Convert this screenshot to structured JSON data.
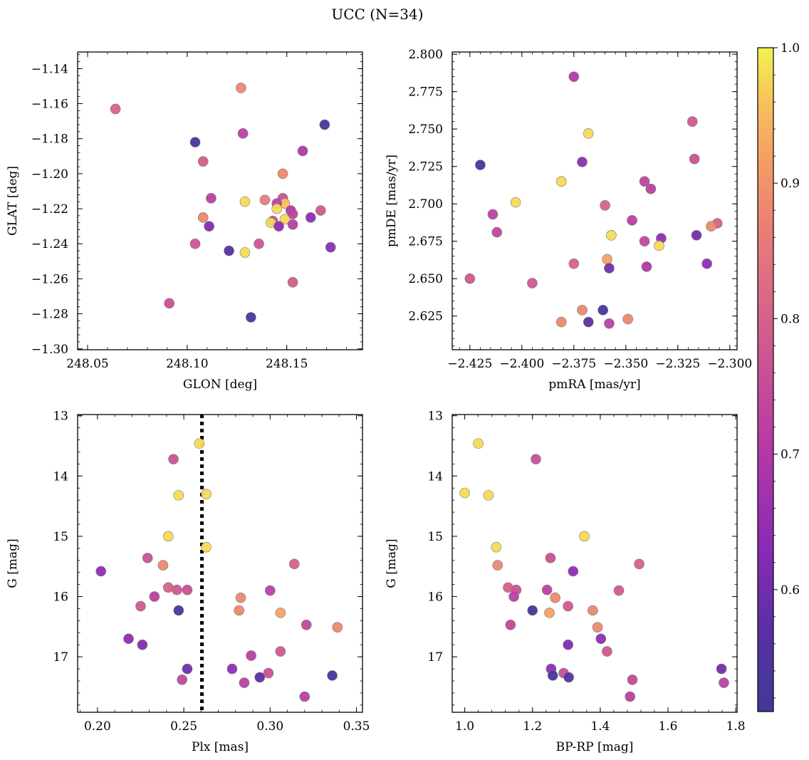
{
  "figure": {
    "title": "UCC (N=34)"
  },
  "colorbar": {
    "ticks": [
      0.6,
      0.7,
      0.8,
      0.9,
      1.0
    ],
    "tick_labels": [
      "0.6",
      "0.7",
      "0.8",
      "0.9",
      "1.0"
    ],
    "range": [
      0.51,
      1.0
    ],
    "colormap": "plasma"
  },
  "chart_data": [
    {
      "type": "scatter",
      "xlabel": "GLON [deg]",
      "ylabel": "GLAT [deg]",
      "xlim": [
        248.045,
        248.188
      ],
      "ylim": [
        -1.3005,
        -1.1305
      ],
      "xticks": [
        248.05,
        248.1,
        248.15
      ],
      "xtick_labels": [
        "248.05",
        "248.10",
        "248.15"
      ],
      "yticks": [
        -1.3,
        -1.28,
        -1.26,
        -1.24,
        -1.22,
        -1.2,
        -1.18,
        -1.16,
        -1.14
      ],
      "ytick_labels": [
        "−1.30",
        "−1.28",
        "−1.26",
        "−1.24",
        "−1.22",
        "−1.20",
        "−1.18",
        "−1.16",
        "−1.14"
      ],
      "points": [
        {
          "x": 248.064,
          "y": -1.163,
          "c": 0.8
        },
        {
          "x": 248.127,
          "y": -1.151,
          "c": 0.88
        },
        {
          "x": 248.169,
          "y": -1.172,
          "c": 0.53
        },
        {
          "x": 248.104,
          "y": -1.182,
          "c": 0.53
        },
        {
          "x": 248.128,
          "y": -1.177,
          "c": 0.72
        },
        {
          "x": 248.158,
          "y": -1.187,
          "c": 0.7
        },
        {
          "x": 248.108,
          "y": -1.193,
          "c": 0.79
        },
        {
          "x": 248.148,
          "y": -1.2,
          "c": 0.88
        },
        {
          "x": 248.112,
          "y": -1.214,
          "c": 0.72
        },
        {
          "x": 248.139,
          "y": -1.215,
          "c": 0.86
        },
        {
          "x": 248.148,
          "y": -1.214,
          "c": 0.76
        },
        {
          "x": 248.129,
          "y": -1.216,
          "c": 0.98
        },
        {
          "x": 248.149,
          "y": -1.217,
          "c": 0.96
        },
        {
          "x": 248.145,
          "y": -1.217,
          "c": 0.72
        },
        {
          "x": 248.152,
          "y": -1.221,
          "c": 0.7
        },
        {
          "x": 248.167,
          "y": -1.221,
          "c": 0.78
        },
        {
          "x": 248.153,
          "y": -1.223,
          "c": 0.73
        },
        {
          "x": 248.145,
          "y": -1.22,
          "c": 0.98
        },
        {
          "x": 248.108,
          "y": -1.225,
          "c": 0.88
        },
        {
          "x": 248.162,
          "y": -1.225,
          "c": 0.64
        },
        {
          "x": 248.149,
          "y": -1.226,
          "c": 0.98
        },
        {
          "x": 248.143,
          "y": -1.227,
          "c": 0.76
        },
        {
          "x": 248.142,
          "y": -1.228,
          "c": 0.98
        },
        {
          "x": 248.153,
          "y": -1.229,
          "c": 0.72
        },
        {
          "x": 248.146,
          "y": -1.23,
          "c": 0.64
        },
        {
          "x": 248.111,
          "y": -1.23,
          "c": 0.62
        },
        {
          "x": 248.104,
          "y": -1.24,
          "c": 0.77
        },
        {
          "x": 248.136,
          "y": -1.24,
          "c": 0.77
        },
        {
          "x": 248.172,
          "y": -1.242,
          "c": 0.64
        },
        {
          "x": 248.121,
          "y": -1.244,
          "c": 0.56
        },
        {
          "x": 248.129,
          "y": -1.245,
          "c": 0.98
        },
        {
          "x": 248.153,
          "y": -1.262,
          "c": 0.79
        },
        {
          "x": 248.091,
          "y": -1.274,
          "c": 0.76
        },
        {
          "x": 248.132,
          "y": -1.282,
          "c": 0.53
        }
      ]
    },
    {
      "type": "scatter",
      "xlabel": "pmRA [mas/yr]",
      "ylabel": "pmDE [mas/yr]",
      "xlim": [
        -2.4335,
        -2.2965
      ],
      "ylim": [
        2.6025,
        2.8015
      ],
      "xticks": [
        -2.425,
        -2.4,
        -2.375,
        -2.35,
        -2.325,
        -2.3
      ],
      "xtick_labels": [
        "−2.425",
        "−2.400",
        "−2.375",
        "−2.350",
        "−2.325",
        "−2.300"
      ],
      "yticks": [
        2.625,
        2.65,
        2.675,
        2.7,
        2.725,
        2.75,
        2.775,
        2.8
      ],
      "ytick_labels": [
        "2.625",
        "2.650",
        "2.675",
        "2.700",
        "2.725",
        "2.750",
        "2.775",
        "2.800"
      ],
      "points": [
        {
          "x": -2.375,
          "y": 2.785,
          "c": 0.7
        },
        {
          "x": -2.318,
          "y": 2.755,
          "c": 0.78
        },
        {
          "x": -2.368,
          "y": 2.747,
          "c": 0.98
        },
        {
          "x": -2.317,
          "y": 2.73,
          "c": 0.76
        },
        {
          "x": -2.371,
          "y": 2.728,
          "c": 0.64
        },
        {
          "x": -2.42,
          "y": 2.726,
          "c": 0.53
        },
        {
          "x": -2.381,
          "y": 2.715,
          "c": 0.98
        },
        {
          "x": -2.341,
          "y": 2.715,
          "c": 0.73
        },
        {
          "x": -2.338,
          "y": 2.71,
          "c": 0.72
        },
        {
          "x": -2.403,
          "y": 2.701,
          "c": 0.98
        },
        {
          "x": -2.36,
          "y": 2.699,
          "c": 0.8
        },
        {
          "x": -2.414,
          "y": 2.693,
          "c": 0.72
        },
        {
          "x": -2.347,
          "y": 2.689,
          "c": 0.72
        },
        {
          "x": -2.306,
          "y": 2.687,
          "c": 0.8
        },
        {
          "x": -2.309,
          "y": 2.685,
          "c": 0.88
        },
        {
          "x": -2.412,
          "y": 2.681,
          "c": 0.74
        },
        {
          "x": -2.357,
          "y": 2.679,
          "c": 0.98
        },
        {
          "x": -2.316,
          "y": 2.679,
          "c": 0.6
        },
        {
          "x": -2.333,
          "y": 2.677,
          "c": 0.64
        },
        {
          "x": -2.341,
          "y": 2.675,
          "c": 0.74
        },
        {
          "x": -2.334,
          "y": 2.672,
          "c": 0.98
        },
        {
          "x": -2.359,
          "y": 2.663,
          "c": 0.92
        },
        {
          "x": -2.375,
          "y": 2.66,
          "c": 0.8
        },
        {
          "x": -2.311,
          "y": 2.66,
          "c": 0.64
        },
        {
          "x": -2.34,
          "y": 2.658,
          "c": 0.7
        },
        {
          "x": -2.358,
          "y": 2.657,
          "c": 0.6
        },
        {
          "x": -2.425,
          "y": 2.65,
          "c": 0.78
        },
        {
          "x": -2.395,
          "y": 2.647,
          "c": 0.78
        },
        {
          "x": -2.371,
          "y": 2.629,
          "c": 0.88
        },
        {
          "x": -2.361,
          "y": 2.629,
          "c": 0.53
        },
        {
          "x": -2.349,
          "y": 2.623,
          "c": 0.88
        },
        {
          "x": -2.381,
          "y": 2.621,
          "c": 0.88
        },
        {
          "x": -2.368,
          "y": 2.621,
          "c": 0.56
        },
        {
          "x": -2.358,
          "y": 2.62,
          "c": 0.72
        }
      ]
    },
    {
      "type": "scatter",
      "xlabel": "Plx [mas]",
      "ylabel": "G [mag]",
      "xlim": [
        0.1885,
        0.3535
      ],
      "ylim": [
        17.92,
        12.98
      ],
      "y_inverted": true,
      "xticks": [
        0.2,
        0.25,
        0.3,
        0.35
      ],
      "xtick_labels": [
        "0.20",
        "0.25",
        "0.30",
        "0.35"
      ],
      "yticks": [
        13,
        14,
        15,
        16,
        17
      ],
      "ytick_labels": [
        "13",
        "14",
        "15",
        "16",
        "17"
      ],
      "vline": {
        "x": 0.2605,
        "style": "dotted"
      },
      "points": [
        {
          "x": 0.259,
          "y": 13.46,
          "c": 0.98
        },
        {
          "x": 0.244,
          "y": 13.72,
          "c": 0.76
        },
        {
          "x": 0.247,
          "y": 14.32,
          "c": 0.98
        },
        {
          "x": 0.263,
          "y": 14.3,
          "c": 0.98
        },
        {
          "x": 0.241,
          "y": 15.0,
          "c": 0.98
        },
        {
          "x": 0.263,
          "y": 15.18,
          "c": 0.98
        },
        {
          "x": 0.229,
          "y": 15.36,
          "c": 0.76
        },
        {
          "x": 0.238,
          "y": 15.48,
          "c": 0.88
        },
        {
          "x": 0.314,
          "y": 15.46,
          "c": 0.8
        },
        {
          "x": 0.202,
          "y": 15.58,
          "c": 0.64
        },
        {
          "x": 0.241,
          "y": 15.85,
          "c": 0.8
        },
        {
          "x": 0.246,
          "y": 15.89,
          "c": 0.78
        },
        {
          "x": 0.252,
          "y": 15.89,
          "c": 0.76
        },
        {
          "x": 0.3,
          "y": 15.9,
          "c": 0.72
        },
        {
          "x": 0.233,
          "y": 16.0,
          "c": 0.72
        },
        {
          "x": 0.283,
          "y": 16.02,
          "c": 0.88
        },
        {
          "x": 0.225,
          "y": 16.16,
          "c": 0.78
        },
        {
          "x": 0.247,
          "y": 16.23,
          "c": 0.53
        },
        {
          "x": 0.282,
          "y": 16.23,
          "c": 0.88
        },
        {
          "x": 0.306,
          "y": 16.27,
          "c": 0.92
        },
        {
          "x": 0.321,
          "y": 16.47,
          "c": 0.74
        },
        {
          "x": 0.339,
          "y": 16.51,
          "c": 0.88
        },
        {
          "x": 0.218,
          "y": 16.7,
          "c": 0.64
        },
        {
          "x": 0.226,
          "y": 16.8,
          "c": 0.62
        },
        {
          "x": 0.306,
          "y": 16.91,
          "c": 0.78
        },
        {
          "x": 0.289,
          "y": 16.98,
          "c": 0.72
        },
        {
          "x": 0.252,
          "y": 17.2,
          "c": 0.6
        },
        {
          "x": 0.278,
          "y": 17.2,
          "c": 0.64
        },
        {
          "x": 0.299,
          "y": 17.27,
          "c": 0.76
        },
        {
          "x": 0.336,
          "y": 17.31,
          "c": 0.53
        },
        {
          "x": 0.294,
          "y": 17.34,
          "c": 0.56
        },
        {
          "x": 0.249,
          "y": 17.38,
          "c": 0.74
        },
        {
          "x": 0.285,
          "y": 17.43,
          "c": 0.72
        },
        {
          "x": 0.32,
          "y": 17.66,
          "c": 0.72
        }
      ]
    },
    {
      "type": "scatter",
      "xlabel": "BP-RP [mag]",
      "ylabel": "G [mag]",
      "xlim": [
        0.963,
        1.804
      ],
      "ylim": [
        17.92,
        12.98
      ],
      "y_inverted": true,
      "xticks": [
        1.0,
        1.2,
        1.4,
        1.6,
        1.8
      ],
      "xtick_labels": [
        "1.0",
        "1.2",
        "1.4",
        "1.6",
        "1.8"
      ],
      "yticks": [
        13,
        14,
        15,
        16,
        17
      ],
      "ytick_labels": [
        "13",
        "14",
        "15",
        "16",
        "17"
      ],
      "points": [
        {
          "x": 1.04,
          "y": 13.46,
          "c": 0.98
        },
        {
          "x": 1.21,
          "y": 13.72,
          "c": 0.76
        },
        {
          "x": 1.0,
          "y": 14.28,
          "c": 0.98
        },
        {
          "x": 1.07,
          "y": 14.32,
          "c": 0.98
        },
        {
          "x": 1.353,
          "y": 15.0,
          "c": 0.98
        },
        {
          "x": 1.093,
          "y": 15.18,
          "c": 0.98
        },
        {
          "x": 1.253,
          "y": 15.36,
          "c": 0.76
        },
        {
          "x": 1.097,
          "y": 15.48,
          "c": 0.88
        },
        {
          "x": 1.515,
          "y": 15.46,
          "c": 0.8
        },
        {
          "x": 1.32,
          "y": 15.58,
          "c": 0.64
        },
        {
          "x": 1.128,
          "y": 15.85,
          "c": 0.8
        },
        {
          "x": 1.152,
          "y": 15.89,
          "c": 0.76
        },
        {
          "x": 1.243,
          "y": 15.89,
          "c": 0.72
        },
        {
          "x": 1.455,
          "y": 15.9,
          "c": 0.78
        },
        {
          "x": 1.145,
          "y": 16.0,
          "c": 0.72
        },
        {
          "x": 1.267,
          "y": 16.02,
          "c": 0.88
        },
        {
          "x": 1.305,
          "y": 16.16,
          "c": 0.78
        },
        {
          "x": 1.2,
          "y": 16.23,
          "c": 0.53
        },
        {
          "x": 1.378,
          "y": 16.23,
          "c": 0.88
        },
        {
          "x": 1.25,
          "y": 16.27,
          "c": 0.92
        },
        {
          "x": 1.135,
          "y": 16.47,
          "c": 0.74
        },
        {
          "x": 1.392,
          "y": 16.51,
          "c": 0.88
        },
        {
          "x": 1.402,
          "y": 16.7,
          "c": 0.64
        },
        {
          "x": 1.305,
          "y": 16.8,
          "c": 0.62
        },
        {
          "x": 1.42,
          "y": 16.91,
          "c": 0.78
        },
        {
          "x": 1.255,
          "y": 17.2,
          "c": 0.64
        },
        {
          "x": 1.758,
          "y": 17.2,
          "c": 0.6
        },
        {
          "x": 1.292,
          "y": 17.27,
          "c": 0.76
        },
        {
          "x": 1.26,
          "y": 17.31,
          "c": 0.53
        },
        {
          "x": 1.307,
          "y": 17.34,
          "c": 0.56
        },
        {
          "x": 1.495,
          "y": 17.38,
          "c": 0.74
        },
        {
          "x": 1.765,
          "y": 17.43,
          "c": 0.72
        },
        {
          "x": 1.488,
          "y": 17.66,
          "c": 0.72
        }
      ]
    }
  ]
}
